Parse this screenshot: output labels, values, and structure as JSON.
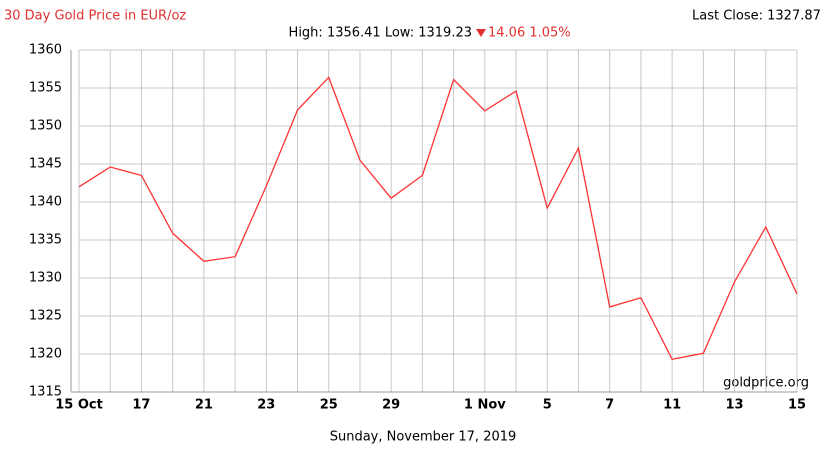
{
  "chart_data": {
    "type": "line",
    "title": "30 Day Gold Price in EUR/oz",
    "last_close": "Last Close: 1327.87",
    "high_low": "High: 1356.41 Low: 1319.23",
    "change": "14.06 1.05%",
    "source": "goldprice.org",
    "date": "Sunday, November 17, 2019",
    "categories": [
      "15 Oct",
      null,
      "17",
      null,
      "21",
      null,
      "23",
      null,
      "25",
      null,
      "29",
      null,
      null,
      "1 Nov",
      null,
      "5",
      null,
      "7",
      null,
      "11",
      null,
      "13",
      null,
      "15"
    ],
    "values": [
      1342.0,
      1344.6,
      1343.5,
      1335.9,
      1332.2,
      1332.8,
      1342.1,
      1352.1,
      1356.4,
      1345.5,
      1340.5,
      1343.5,
      1356.1,
      1352.0,
      1354.6,
      1339.2,
      1347.1,
      1326.2,
      1327.4,
      1319.3,
      1320.1,
      1329.5,
      1336.7,
      1327.9
    ],
    "color": "#ff3333",
    "ylim": [
      1315,
      1360
    ],
    "yticks": [
      1315,
      1320,
      1325,
      1330,
      1335,
      1340,
      1345,
      1350,
      1355,
      1360
    ],
    "grid": true
  }
}
